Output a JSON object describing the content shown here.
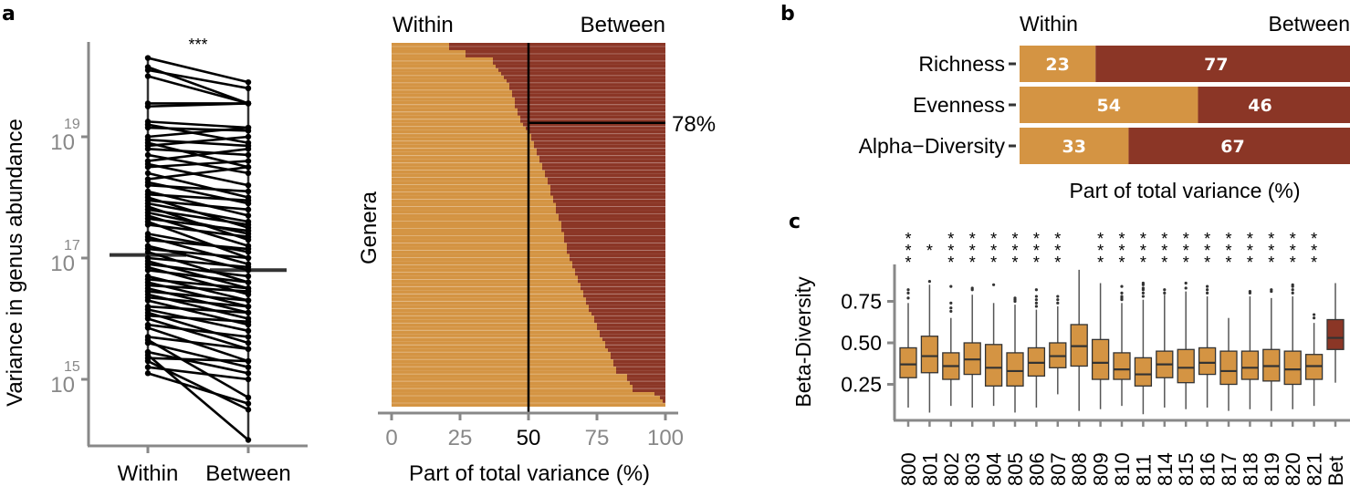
{
  "colors": {
    "within": "#D49443",
    "between": "#8B3626",
    "axis": "#888888",
    "box_line": "#333333",
    "text": "#000000",
    "tick_text_gray": "#888888",
    "row_separator": "#E8C9A0"
  },
  "panel_labels": {
    "a": "a",
    "b": "b",
    "c": "c"
  },
  "chart_data": [
    {
      "id": "a-boxplot",
      "type": "boxplot-paired",
      "title": "",
      "ylabel": "Variance in genus abundance",
      "yscale": "log10",
      "ylim_log10": [
        13.5,
        20.5
      ],
      "ytick_labels": [
        {
          "base": "10",
          "exp": "15",
          "log10": 15
        },
        {
          "base": "10",
          "exp": "17",
          "log10": 17
        },
        {
          "base": "10",
          "exp": "19",
          "log10": 19
        }
      ],
      "categories": [
        "Within",
        "Between"
      ],
      "significance": "***",
      "boxes": [
        {
          "name": "Within",
          "q1_log10": 16.3,
          "median_log10": 17.05,
          "q3_log10": 17.75
        },
        {
          "name": "Between",
          "q1_log10": 16.1,
          "median_log10": 16.8,
          "q3_log10": 17.45
        }
      ],
      "pairs_log10": [
        [
          20.3,
          19.9
        ],
        [
          20.15,
          19.55
        ],
        [
          20.1,
          19.8
        ],
        [
          20.0,
          19.55
        ],
        [
          19.55,
          19.55
        ],
        [
          19.5,
          19.55
        ],
        [
          19.25,
          19.15
        ],
        [
          19.2,
          18.9
        ],
        [
          19.15,
          19.1
        ],
        [
          19.0,
          19.15
        ],
        [
          18.95,
          18.85
        ],
        [
          18.9,
          18.5
        ],
        [
          18.85,
          19.0
        ],
        [
          18.8,
          18.7
        ],
        [
          18.7,
          18.4
        ],
        [
          18.6,
          18.8
        ],
        [
          18.55,
          18.2
        ],
        [
          18.5,
          18.6
        ],
        [
          18.4,
          18.0
        ],
        [
          18.3,
          18.5
        ],
        [
          18.25,
          17.9
        ],
        [
          18.2,
          18.1
        ],
        [
          18.1,
          17.7
        ],
        [
          18.05,
          17.95
        ],
        [
          18.0,
          17.5
        ],
        [
          17.95,
          17.8
        ],
        [
          17.9,
          17.6
        ],
        [
          17.85,
          17.3
        ],
        [
          17.8,
          17.55
        ],
        [
          17.75,
          17.4
        ],
        [
          17.7,
          17.2
        ],
        [
          17.65,
          17.45
        ],
        [
          17.6,
          17.0
        ],
        [
          17.55,
          17.35
        ],
        [
          17.4,
          17.1
        ],
        [
          17.35,
          16.9
        ],
        [
          17.3,
          17.15
        ],
        [
          17.2,
          16.8
        ],
        [
          17.15,
          17.0
        ],
        [
          17.1,
          16.6
        ],
        [
          17.0,
          16.85
        ],
        [
          16.95,
          16.5
        ],
        [
          16.9,
          16.7
        ],
        [
          16.85,
          16.4
        ],
        [
          16.8,
          16.6
        ],
        [
          16.7,
          16.3
        ],
        [
          16.65,
          16.5
        ],
        [
          16.6,
          16.2
        ],
        [
          16.55,
          16.45
        ],
        [
          16.5,
          16.1
        ],
        [
          16.45,
          16.3
        ],
        [
          16.4,
          16.0
        ],
        [
          16.35,
          16.2
        ],
        [
          16.3,
          15.9
        ],
        [
          16.2,
          16.1
        ],
        [
          16.15,
          15.8
        ],
        [
          16.1,
          15.6
        ],
        [
          16.05,
          15.95
        ],
        [
          16.0,
          15.5
        ],
        [
          15.9,
          15.7
        ],
        [
          15.85,
          15.3
        ],
        [
          15.7,
          15.5
        ],
        [
          15.65,
          14.7
        ],
        [
          15.6,
          15.2
        ],
        [
          15.45,
          15.1
        ],
        [
          15.4,
          14.0
        ],
        [
          15.35,
          15.3
        ],
        [
          15.3,
          14.5
        ],
        [
          15.2,
          15.0
        ],
        [
          15.1,
          14.6
        ]
      ]
    },
    {
      "id": "a-genera",
      "type": "stacked-bar-horizontal",
      "xlabel": "Part of total variance (%)",
      "ylabel": "Genera",
      "header_left": "Within",
      "header_right": "Between",
      "xlim": [
        0,
        100
      ],
      "xticks": [
        0,
        25,
        50,
        75,
        100
      ],
      "xtick_labels": [
        "0",
        "25",
        "50",
        "75",
        "100"
      ],
      "reference_x": 50,
      "annotation": "78%",
      "annotation_fraction_from_bottom": 0.78,
      "within_percent_sorted": [
        21,
        21,
        27,
        27,
        37,
        37,
        38,
        39,
        40,
        41,
        42,
        43,
        43,
        44,
        44,
        45,
        45,
        45,
        46,
        46,
        47,
        47,
        48,
        49,
        50,
        51,
        51,
        52,
        52,
        53,
        53,
        54,
        54,
        55,
        55,
        56,
        56,
        57,
        57,
        58,
        58,
        58,
        59,
        59,
        60,
        60,
        60,
        61,
        61,
        62,
        62,
        62,
        63,
        63,
        63,
        64,
        64,
        64,
        65,
        65,
        66,
        66,
        67,
        67,
        68,
        68,
        69,
        69,
        70,
        70,
        71,
        71,
        72,
        72,
        73,
        74,
        74,
        75,
        75,
        76,
        76,
        77,
        78,
        78,
        79,
        80,
        80,
        81,
        81,
        82,
        82,
        86,
        86,
        87,
        88,
        88,
        96,
        98,
        99,
        100
      ]
    },
    {
      "id": "b-diversity",
      "type": "stacked-bar-horizontal",
      "xlabel": "Part of total variance (%)",
      "header_left": "Within",
      "header_right": "Between",
      "categories": [
        "Richness",
        "Evenness",
        "Alpha−Diversity"
      ],
      "series": [
        {
          "name": "Within",
          "values": [
            23,
            54,
            33
          ]
        },
        {
          "name": "Between",
          "values": [
            77,
            46,
            67
          ]
        }
      ]
    },
    {
      "id": "c-beta",
      "type": "boxplot",
      "ylabel": "Beta-Diversity",
      "ylim": [
        0.0,
        0.95
      ],
      "yticks": [
        0.25,
        0.5,
        0.75
      ],
      "ytick_labels": [
        "0.25",
        "0.50",
        "0.75"
      ],
      "categories": [
        "800",
        "801",
        "802",
        "803",
        "804",
        "805",
        "806",
        "807",
        "808",
        "809",
        "810",
        "811",
        "814",
        "815",
        "816",
        "817",
        "818",
        "819",
        "820",
        "821",
        "Bet"
      ],
      "significance": [
        "***",
        "*",
        "***",
        "***",
        "***",
        "***",
        "***",
        "***",
        "",
        "***",
        "***",
        "***",
        "***",
        "***",
        "***",
        "***",
        "***",
        "***",
        "***",
        "***",
        ""
      ],
      "boxes": [
        {
          "whislo": 0.11,
          "q1": 0.29,
          "med": 0.37,
          "q3": 0.47,
          "whishi": 0.74,
          "outliers": [
            0.77,
            0.8,
            0.82
          ]
        },
        {
          "whislo": 0.08,
          "q1": 0.32,
          "med": 0.42,
          "q3": 0.54,
          "whishi": 0.85,
          "outliers": [
            0.87
          ]
        },
        {
          "whislo": 0.12,
          "q1": 0.28,
          "med": 0.36,
          "q3": 0.44,
          "whishi": 0.65,
          "outliers": [
            0.69,
            0.71,
            0.74,
            0.84
          ]
        },
        {
          "whislo": 0.11,
          "q1": 0.31,
          "med": 0.4,
          "q3": 0.5,
          "whishi": 0.79,
          "outliers": [
            0.82,
            0.83
          ]
        },
        {
          "whislo": 0.12,
          "q1": 0.24,
          "med": 0.35,
          "q3": 0.49,
          "whishi": 0.74,
          "outliers": [
            0.85
          ]
        },
        {
          "whislo": 0.08,
          "q1": 0.24,
          "med": 0.33,
          "q3": 0.44,
          "whishi": 0.73,
          "outliers": [
            0.75,
            0.76,
            0.77
          ]
        },
        {
          "whislo": 0.11,
          "q1": 0.3,
          "med": 0.38,
          "q3": 0.47,
          "whishi": 0.7,
          "outliers": [
            0.72,
            0.74,
            0.76,
            0.78,
            0.82
          ]
        },
        {
          "whislo": 0.19,
          "q1": 0.35,
          "med": 0.42,
          "q3": 0.5,
          "whishi": 0.72,
          "outliers": [
            0.74,
            0.76,
            0.78
          ]
        },
        {
          "whislo": 0.09,
          "q1": 0.36,
          "med": 0.48,
          "q3": 0.61,
          "whishi": 0.94,
          "outliers": []
        },
        {
          "whislo": 0.1,
          "q1": 0.28,
          "med": 0.38,
          "q3": 0.52,
          "whishi": 0.86,
          "outliers": []
        },
        {
          "whislo": 0.12,
          "q1": 0.28,
          "med": 0.34,
          "q3": 0.44,
          "whishi": 0.74,
          "outliers": [
            0.76,
            0.77,
            0.78,
            0.8,
            0.84
          ]
        },
        {
          "whislo": 0.07,
          "q1": 0.24,
          "med": 0.31,
          "q3": 0.41,
          "whishi": 0.76,
          "outliers": [
            0.78,
            0.8,
            0.82,
            0.83,
            0.85,
            0.86
          ]
        },
        {
          "whislo": 0.11,
          "q1": 0.29,
          "med": 0.37,
          "q3": 0.45,
          "whishi": 0.79,
          "outliers": [
            0.8,
            0.82
          ]
        },
        {
          "whislo": 0.1,
          "q1": 0.26,
          "med": 0.35,
          "q3": 0.46,
          "whishi": 0.81,
          "outliers": [
            0.83,
            0.86
          ]
        },
        {
          "whislo": 0.11,
          "q1": 0.31,
          "med": 0.38,
          "q3": 0.47,
          "whishi": 0.78,
          "outliers": [
            0.8,
            0.82,
            0.84
          ]
        },
        {
          "whislo": 0.09,
          "q1": 0.25,
          "med": 0.33,
          "q3": 0.45,
          "whishi": 0.65,
          "outliers": []
        },
        {
          "whislo": 0.1,
          "q1": 0.28,
          "med": 0.35,
          "q3": 0.45,
          "whishi": 0.78,
          "outliers": [
            0.8,
            0.81
          ]
        },
        {
          "whislo": 0.09,
          "q1": 0.27,
          "med": 0.36,
          "q3": 0.46,
          "whishi": 0.77,
          "outliers": [
            0.81,
            0.82
          ]
        },
        {
          "whislo": 0.1,
          "q1": 0.25,
          "med": 0.34,
          "q3": 0.45,
          "whishi": 0.78,
          "outliers": [
            0.8,
            0.82,
            0.84,
            0.85
          ]
        },
        {
          "whislo": 0.12,
          "q1": 0.28,
          "med": 0.36,
          "q3": 0.43,
          "whishi": 0.62,
          "outliers": [
            0.65,
            0.67
          ]
        },
        {
          "whislo": 0.26,
          "q1": 0.46,
          "med": 0.53,
          "q3": 0.64,
          "whishi": 0.86,
          "outliers": []
        }
      ]
    }
  ]
}
